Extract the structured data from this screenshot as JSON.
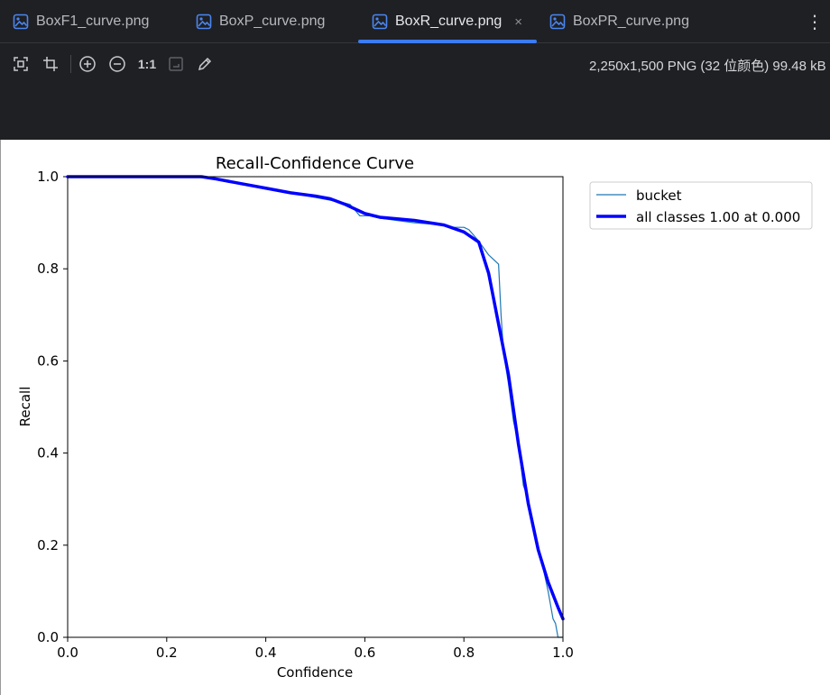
{
  "tabs": [
    {
      "label": "BoxF1_curve.png",
      "active": false
    },
    {
      "label": "BoxP_curve.png",
      "active": false
    },
    {
      "label": "BoxR_curve.png",
      "active": true,
      "close": "×"
    },
    {
      "label": "BoxPR_curve.png",
      "active": false
    }
  ],
  "toolbar": {
    "zoom_1to1_label": "1:1",
    "file_info": "2,250x1,500 PNG (32 位颜色) 99.48 kB",
    "more_label": "⋮"
  },
  "chart_data": {
    "type": "line",
    "title": "Recall-Confidence Curve",
    "xlabel": "Confidence",
    "ylabel": "Recall",
    "xlim": [
      0.0,
      1.0
    ],
    "ylim": [
      0.0,
      1.0
    ],
    "xticks": [
      "0.0",
      "0.2",
      "0.4",
      "0.6",
      "0.8",
      "1.0"
    ],
    "yticks": [
      "0.0",
      "0.2",
      "0.4",
      "0.6",
      "0.8",
      "1.0"
    ],
    "grid": false,
    "legend_position": "outside-top-right",
    "series": [
      {
        "name": "bucket",
        "color": "#1f77b4",
        "x": [
          0.0,
          0.25,
          0.3,
          0.35,
          0.4,
          0.45,
          0.5,
          0.55,
          0.57,
          0.59,
          0.6,
          0.61,
          0.63,
          0.7,
          0.76,
          0.78,
          0.8,
          0.81,
          0.83,
          0.85,
          0.87,
          0.875,
          0.88,
          0.89,
          0.9,
          0.91,
          0.92,
          0.93,
          0.94,
          0.95,
          0.96,
          0.97,
          0.98,
          0.985,
          0.99,
          1.0
        ],
        "y": [
          1.0,
          1.0,
          0.995,
          0.985,
          0.975,
          0.965,
          0.955,
          0.945,
          0.94,
          0.915,
          0.915,
          0.915,
          0.91,
          0.9,
          0.895,
          0.89,
          0.89,
          0.885,
          0.86,
          0.83,
          0.81,
          0.7,
          0.62,
          0.55,
          0.47,
          0.42,
          0.33,
          0.3,
          0.25,
          0.2,
          0.15,
          0.1,
          0.04,
          0.03,
          0.0,
          0.0
        ]
      },
      {
        "name": "all classes 1.00 at 0.000",
        "color": "#0000ff",
        "x": [
          0.0,
          0.2,
          0.27,
          0.3,
          0.35,
          0.4,
          0.45,
          0.5,
          0.53,
          0.56,
          0.6,
          0.63,
          0.7,
          0.76,
          0.8,
          0.83,
          0.85,
          0.87,
          0.89,
          0.91,
          0.93,
          0.95,
          0.97,
          0.99,
          1.0
        ],
        "y": [
          1.0,
          1.0,
          1.0,
          0.995,
          0.985,
          0.975,
          0.965,
          0.958,
          0.952,
          0.94,
          0.92,
          0.912,
          0.905,
          0.895,
          0.88,
          0.858,
          0.79,
          0.68,
          0.57,
          0.42,
          0.29,
          0.19,
          0.12,
          0.065,
          0.04
        ]
      }
    ]
  }
}
